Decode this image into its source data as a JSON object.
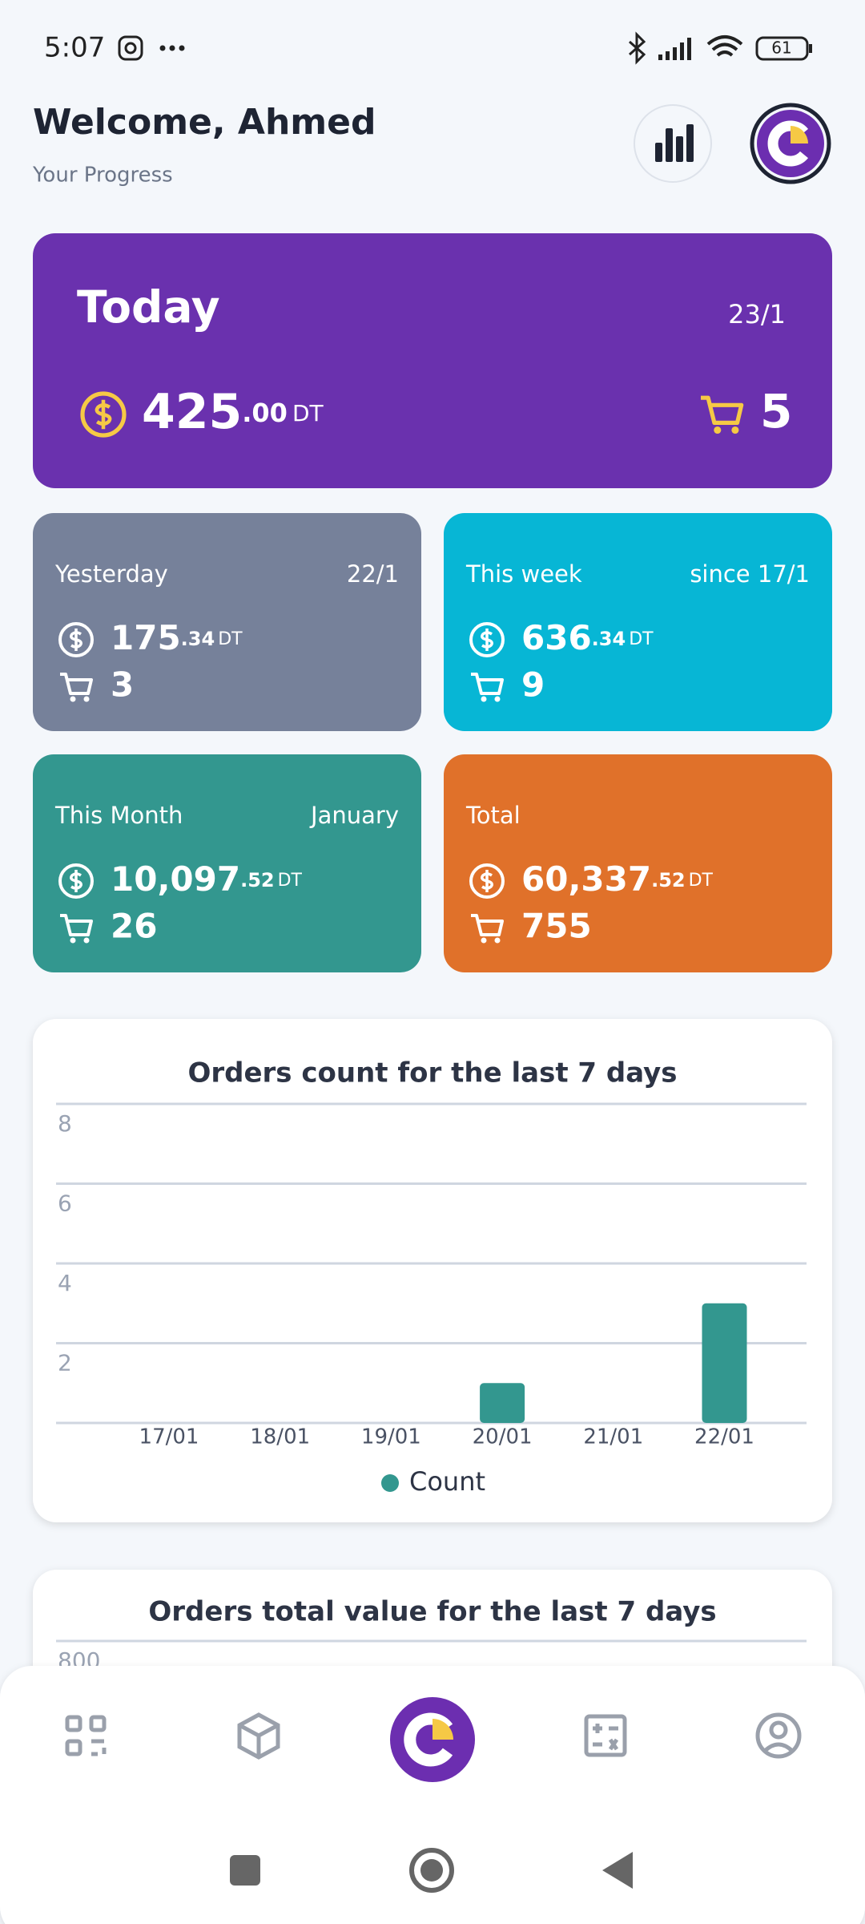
{
  "status_bar": {
    "time": "5:07",
    "battery": "61"
  },
  "header": {
    "title": "Welcome, Ahmed",
    "subtitle": "Your Progress"
  },
  "today": {
    "label": "Today",
    "date": "23/1",
    "amount": "425",
    "decimals": ".00",
    "currency": "DT",
    "orders": "5"
  },
  "cards": [
    {
      "label": "Yesterday",
      "date": "22/1",
      "amount": "175",
      "decimals": ".34",
      "currency": "DT",
      "orders": "3"
    },
    {
      "label": "This week",
      "date": "since 17/1",
      "amount": "636",
      "decimals": ".34",
      "currency": "DT",
      "orders": "9"
    },
    {
      "label": "This Month",
      "date": "January",
      "amount": "10,097",
      "decimals": ".52",
      "currency": "DT",
      "orders": "26"
    },
    {
      "label": "Total",
      "amount": "60,337",
      "decimals": ".52",
      "currency": "DT",
      "orders": "755"
    }
  ],
  "charts": [
    {
      "chart_data": {
        "type": "bar",
        "title": "Orders count for the last 7 days",
        "categories": [
          "17/01",
          "18/01",
          "19/01",
          "20/01",
          "21/01",
          "22/01"
        ],
        "series": [
          {
            "name": "Count",
            "color": "#33978f",
            "values": [
              0,
              0,
              0,
              1,
              0,
              3
            ]
          }
        ],
        "ylim": [
          0,
          8
        ],
        "yticks": [
          2,
          4,
          6,
          8
        ],
        "grid": true
      }
    },
    {
      "chart_data": {
        "type": "bar",
        "title": "Orders total value for the last 7 days",
        "yticks": [
          800
        ]
      }
    }
  ]
}
